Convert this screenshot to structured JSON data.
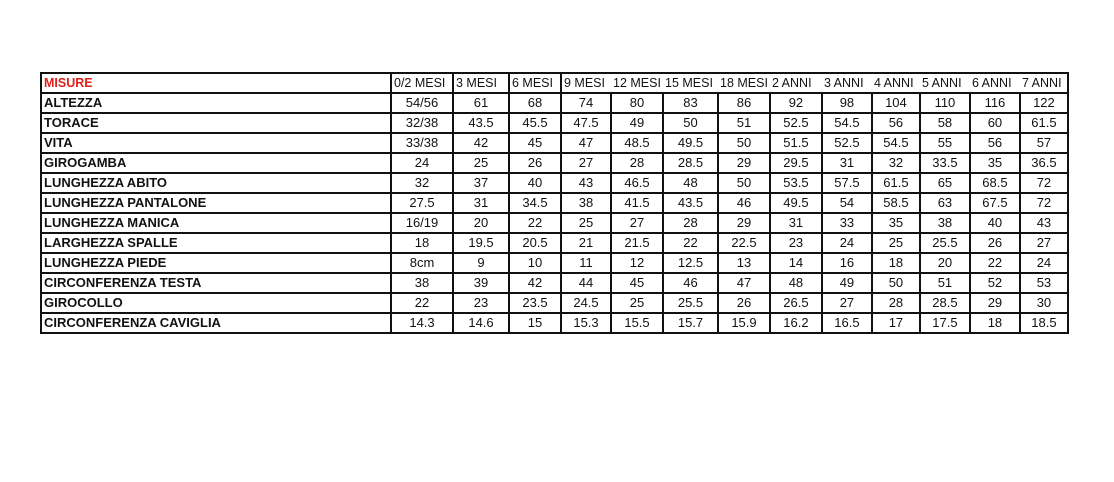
{
  "table": {
    "title": "MISURE",
    "title_color": "#e0201b",
    "columns": [
      "0/2 MESI",
      "3 MESI",
      "6 MESI",
      "9 MESI",
      "12 MESI",
      "15 MESI",
      "18 MESI",
      "2 ANNI",
      "3 ANNI",
      "4 ANNI",
      "5 ANNI",
      "6 ANNI",
      "7 ANNI"
    ],
    "rows": [
      {
        "label": "ALTEZZA",
        "values": [
          "54/56",
          "61",
          "68",
          "74",
          "80",
          "83",
          "86",
          "92",
          "98",
          "104",
          "110",
          "116",
          "122"
        ]
      },
      {
        "label": "TORACE",
        "values": [
          "32/38",
          "43.5",
          "45.5",
          "47.5",
          "49",
          "50",
          "51",
          "52.5",
          "54.5",
          "56",
          "58",
          "60",
          "61.5"
        ]
      },
      {
        "label": "VITA",
        "values": [
          "33/38",
          "42",
          "45",
          "47",
          "48.5",
          "49.5",
          "50",
          "51.5",
          "52.5",
          "54.5",
          "55",
          "56",
          "57"
        ]
      },
      {
        "label": "GIROGAMBA",
        "values": [
          "24",
          "25",
          "26",
          "27",
          "28",
          "28.5",
          "29",
          "29.5",
          "31",
          "32",
          "33.5",
          "35",
          "36.5"
        ]
      },
      {
        "label": "LUNGHEZZA ABITO",
        "values": [
          "32",
          "37",
          "40",
          "43",
          "46.5",
          "48",
          "50",
          "53.5",
          "57.5",
          "61.5",
          "65",
          "68.5",
          "72"
        ]
      },
      {
        "label": "LUNGHEZZA PANTALONE",
        "values": [
          "27.5",
          "31",
          "34.5",
          "38",
          "41.5",
          "43.5",
          "46",
          "49.5",
          "54",
          "58.5",
          "63",
          "67.5",
          "72"
        ]
      },
      {
        "label": "LUNGHEZZA MANICA",
        "values": [
          "16/19",
          "20",
          "22",
          "25",
          "27",
          "28",
          "29",
          "31",
          "33",
          "35",
          "38",
          "40",
          "43"
        ]
      },
      {
        "label": "LARGHEZZA SPALLE",
        "values": [
          "18",
          "19.5",
          "20.5",
          "21",
          "21.5",
          "22",
          "22.5",
          "23",
          "24",
          "25",
          "25.5",
          "26",
          "27"
        ]
      },
      {
        "label": "LUNGHEZZA PIEDE",
        "values": [
          "8cm",
          "9",
          "10",
          "11",
          "12",
          "12.5",
          "13",
          "14",
          "16",
          "18",
          "20",
          "22",
          "24"
        ]
      },
      {
        "label": "CIRCONFERENZA TESTA",
        "values": [
          "38",
          "39",
          "42",
          "44",
          "45",
          "46",
          "47",
          "48",
          "49",
          "50",
          "51",
          "52",
          "53"
        ]
      },
      {
        "label": "GIROCOLLO",
        "values": [
          "22",
          "23",
          "23.5",
          "24.5",
          "25",
          "25.5",
          "26",
          "26.5",
          "27",
          "28",
          "28.5",
          "29",
          "30"
        ]
      },
      {
        "label": "CIRCONFERENZA CAVIGLIA",
        "values": [
          "14.3",
          "14.6",
          "15",
          "15.3",
          "15.5",
          "15.7",
          "15.9",
          "16.2",
          "16.5",
          "17",
          "17.5",
          "18",
          "18.5"
        ]
      }
    ]
  }
}
